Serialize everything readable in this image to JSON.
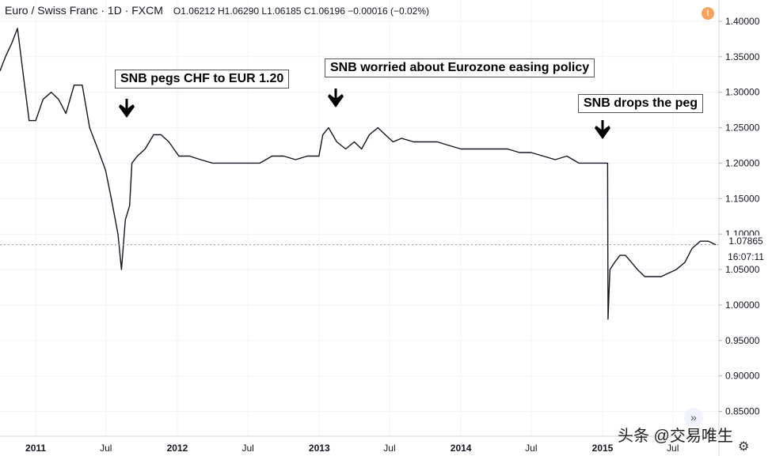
{
  "header": {
    "title": "Euro / Swiss Franc · 1D · FXCM",
    "open_label": "O",
    "open": "1.06212",
    "high_label": "H",
    "high": "1.06290",
    "low_label": "L",
    "low": "1.06185",
    "close_label": "C",
    "close": "1.06196",
    "change": "−0.00016 (−0.02%)"
  },
  "warning_icon": "!",
  "annotations": [
    {
      "text": "SNB pegs CHF to EUR 1.20"
    },
    {
      "text": "SNB worried about Eurozone easing policy"
    },
    {
      "text": "SNB drops the peg"
    }
  ],
  "last_price": "1.07865",
  "clock": "16:07:11",
  "watermark": "头条 @交易唯生",
  "ff_icon": "»",
  "gear_icon": "⚙",
  "chart_data": {
    "type": "line",
    "symbol": "EURCHF",
    "timeframe": "1D",
    "x_ticks": [
      "2011",
      "Jul",
      "2012",
      "Jul",
      "2013",
      "Jul",
      "2014",
      "Jul",
      "2015",
      "Jul"
    ],
    "y_ticks": [
      "0.85000",
      "0.90000",
      "0.95000",
      "1.00000",
      "1.05000",
      "1.10000",
      "1.15000",
      "1.20000",
      "1.25000",
      "1.30000",
      "1.35000",
      "1.40000"
    ],
    "ylim": [
      0.815,
      1.43
    ],
    "xlim": [
      "2010-10-01",
      "2015-10-28"
    ],
    "series": [
      {
        "x": [
          "2010-10-01",
          "2010-10-15",
          "2010-11-01",
          "2010-11-15",
          "2010-12-01",
          "2010-12-15",
          "2011-01-01",
          "2011-01-20",
          "2011-02-10",
          "2011-03-01",
          "2011-03-20",
          "2011-04-10",
          "2011-05-01",
          "2011-05-20",
          "2011-06-10",
          "2011-06-30",
          "2011-07-15",
          "2011-08-01",
          "2011-08-10",
          "2011-08-20",
          "2011-08-31",
          "2011-09-06",
          "2011-09-20",
          "2011-10-10",
          "2011-11-01",
          "2011-11-20",
          "2011-12-10",
          "2012-01-05",
          "2012-02-01",
          "2012-03-01",
          "2012-04-01",
          "2012-05-01",
          "2012-06-01",
          "2012-07-01",
          "2012-08-01",
          "2012-09-01",
          "2012-10-01",
          "2012-11-01",
          "2012-12-01",
          "2012-12-31",
          "2013-01-10",
          "2013-01-25",
          "2013-02-15",
          "2013-03-10",
          "2013-04-01",
          "2013-04-20",
          "2013-05-10",
          "2013-06-01",
          "2013-06-20",
          "2013-07-10",
          "2013-08-01",
          "2013-09-01",
          "2013-10-01",
          "2013-11-01",
          "2013-12-01",
          "2014-01-01",
          "2014-02-01",
          "2014-03-01",
          "2014-04-01",
          "2014-05-01",
          "2014-06-01",
          "2014-07-01",
          "2014-08-01",
          "2014-09-01",
          "2014-10-01",
          "2014-11-01",
          "2014-12-01",
          "2015-01-14",
          "2015-01-15",
          "2015-01-20",
          "2015-02-01",
          "2015-02-15",
          "2015-03-01",
          "2015-04-01",
          "2015-04-20",
          "2015-05-10",
          "2015-06-01",
          "2015-06-20",
          "2015-07-10",
          "2015-08-01",
          "2015-08-20",
          "2015-09-10",
          "2015-10-01",
          "2015-10-20"
        ],
        "y": [
          1.33,
          1.35,
          1.37,
          1.39,
          1.32,
          1.26,
          1.26,
          1.29,
          1.3,
          1.29,
          1.27,
          1.31,
          1.31,
          1.25,
          1.22,
          1.19,
          1.15,
          1.1,
          1.05,
          1.12,
          1.14,
          1.2,
          1.21,
          1.22,
          1.24,
          1.24,
          1.23,
          1.21,
          1.21,
          1.205,
          1.2,
          1.2,
          1.2,
          1.2,
          1.2,
          1.21,
          1.21,
          1.205,
          1.21,
          1.21,
          1.24,
          1.25,
          1.23,
          1.22,
          1.23,
          1.22,
          1.24,
          1.25,
          1.24,
          1.23,
          1.235,
          1.23,
          1.23,
          1.23,
          1.225,
          1.22,
          1.22,
          1.22,
          1.22,
          1.22,
          1.215,
          1.215,
          1.21,
          1.205,
          1.21,
          1.2,
          1.2,
          1.2,
          0.98,
          1.05,
          1.06,
          1.07,
          1.07,
          1.05,
          1.04,
          1.04,
          1.04,
          1.045,
          1.05,
          1.06,
          1.08,
          1.09,
          1.09,
          1.085
        ]
      }
    ]
  }
}
